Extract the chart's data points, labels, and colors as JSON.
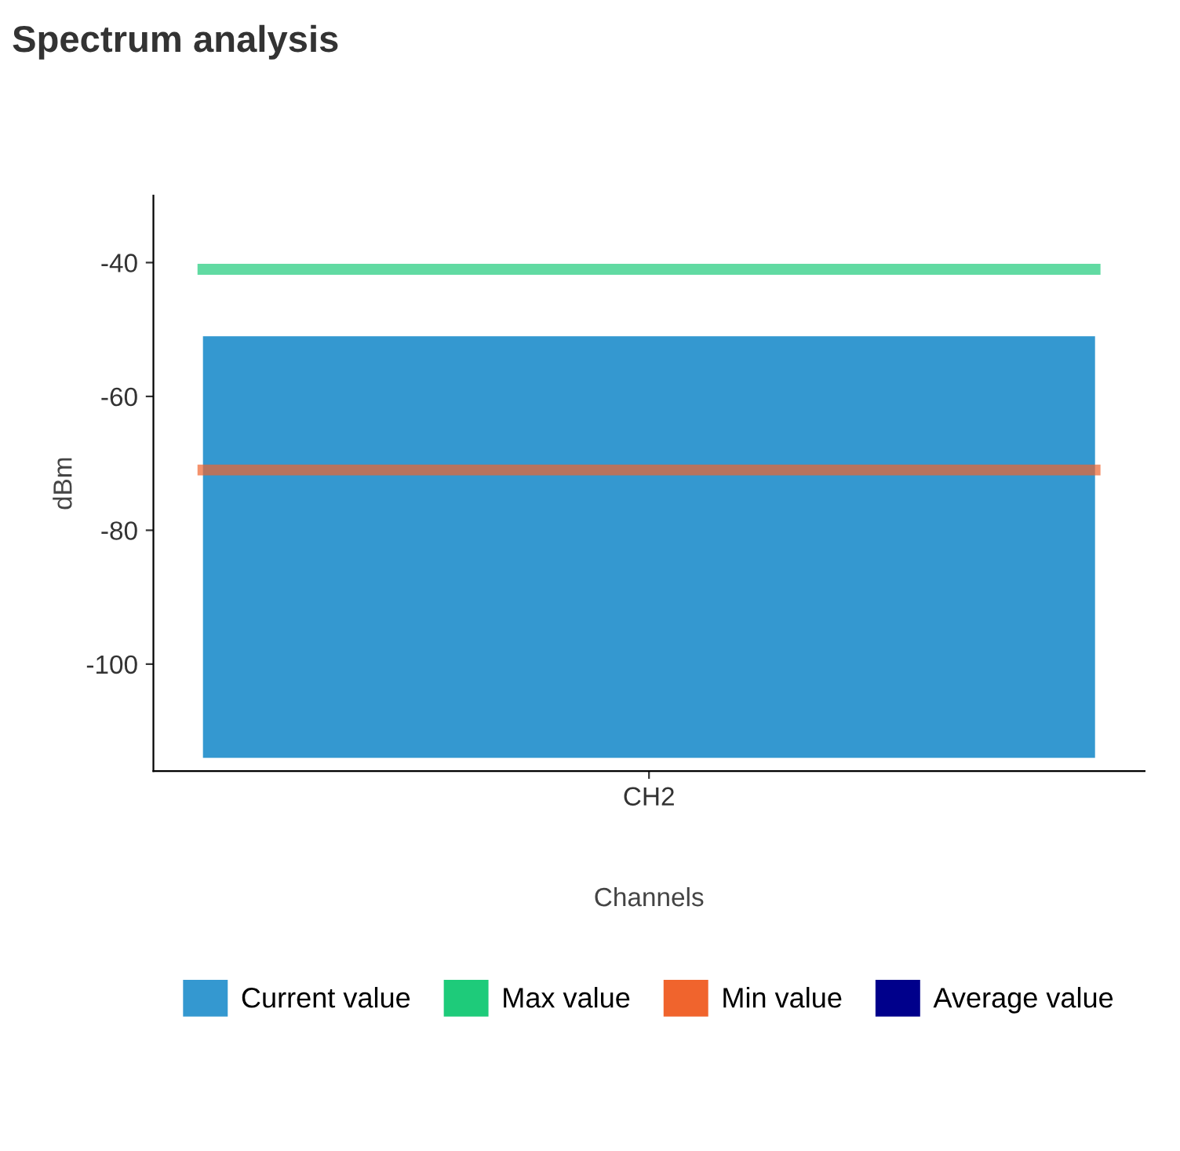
{
  "chart_data": {
    "type": "bar",
    "title": "Spectrum analysis",
    "xlabel": "Channels",
    "ylabel": "dBm",
    "categories": [
      "CH2"
    ],
    "series": [
      {
        "name": "Average value",
        "color": "#00008b",
        "type": "line",
        "values": [
          null
        ]
      }
    ],
    "bands": [
      {
        "axis": "y",
        "from": -114,
        "to": -51,
        "label": "Current value",
        "color": "#3498d0"
      }
    ],
    "ref_lines": [
      {
        "axis": "y",
        "value": -41,
        "label": "Max value",
        "color": "#1ecb7a"
      },
      {
        "axis": "y",
        "value": -71,
        "label": "Min value",
        "color": "#f0642d"
      }
    ],
    "ylim": [
      -116,
      -30
    ],
    "yticks": [
      -40,
      -60,
      -80,
      -100
    ],
    "grid": false,
    "legend": "bottom"
  }
}
